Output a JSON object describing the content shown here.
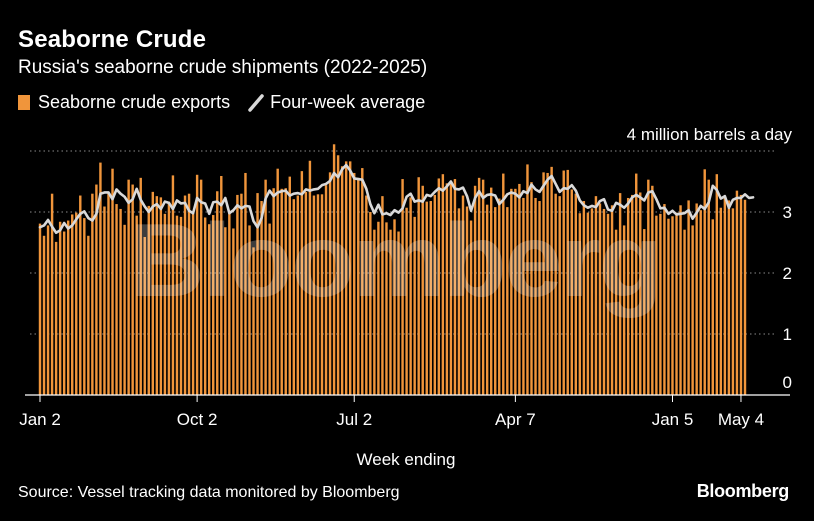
{
  "header": {
    "title": "Seaborne Crude",
    "subtitle": "Russia's seaborne crude shipments (2022-2025)"
  },
  "legend": {
    "bars_label": "Seaborne crude exports",
    "line_label": "Four-week average"
  },
  "footer": {
    "source": "Source: Vessel tracking data monitored by Bloomberg",
    "brand": "Bloomberg"
  },
  "watermark": "Bloomberg",
  "colors": {
    "background": "#000000",
    "bar": "#f0953b",
    "line": "#d9d9d9",
    "grid": "#8a8a8a",
    "text": "#ffffff"
  },
  "chart_data": {
    "type": "bar",
    "unit_label": "4 million barrels a day",
    "xlabel": "Week ending",
    "ylim": [
      0,
      4
    ],
    "yticks": [
      0,
      1,
      2,
      3,
      4
    ],
    "ytick_labels": [
      "0",
      "1",
      "2",
      "3",
      ""
    ],
    "xtick_labels": [
      "Jan 2",
      "Oct 2",
      "Jul 2",
      "Apr 7",
      "Jan 5",
      "May 4"
    ],
    "xtick_indices": [
      0,
      39,
      78,
      118,
      157,
      174
    ],
    "grid": "horizontal dotted",
    "series": [
      {
        "name": "Seaborne crude exports",
        "style": "bar",
        "values": [
          2.81,
          2.61,
          2.78,
          3.3,
          2.51,
          2.84,
          2.68,
          2.86,
          2.96,
          2.99,
          3.27,
          2.9,
          2.61,
          3.3,
          3.45,
          3.81,
          3.09,
          3.31,
          3.71,
          3.13,
          3.05,
          2.79,
          3.53,
          3.45,
          2.94,
          3.56,
          2.59,
          3.1,
          3.33,
          3.26,
          3.24,
          2.97,
          3.17,
          3.6,
          2.94,
          2.92,
          3.27,
          3.3,
          2.98,
          3.61,
          3.53,
          2.91,
          2.8,
          2.95,
          3.34,
          3.59,
          2.75,
          3.02,
          2.73,
          3.28,
          3.3,
          3.64,
          2.78,
          2.42,
          3.31,
          3.18,
          3.53,
          2.81,
          3.39,
          3.71,
          3.38,
          3.39,
          3.58,
          3.21,
          3.27,
          3.67,
          3.33,
          3.84,
          3.27,
          3.29,
          3.29,
          3.44,
          3.65,
          4.11,
          3.93,
          3.75,
          3.83,
          3.83,
          3.64,
          3.56,
          3.72,
          3.27,
          3.0,
          2.71,
          2.84,
          3.26,
          2.83,
          2.71,
          2.88,
          2.68,
          3.54,
          3.07,
          3.24,
          2.92,
          3.57,
          3.43,
          3.17,
          3.18,
          3.28,
          3.55,
          3.62,
          3.47,
          3.49,
          3.54,
          3.06,
          3.27,
          3.09,
          2.86,
          3.43,
          3.56,
          3.53,
          3.12,
          3.4,
          3.08,
          3.22,
          3.63,
          3.08,
          3.38,
          3.38,
          3.46,
          3.23,
          3.78,
          3.49,
          3.23,
          3.18,
          3.65,
          3.64,
          3.74,
          3.3,
          3.26,
          3.68,
          3.69,
          3.37,
          3.3,
          2.98,
          3.18,
          2.99,
          3.06,
          3.26,
          3.14,
          3.05,
          2.97,
          3.11,
          2.71,
          3.31,
          2.78,
          3.23,
          3.28,
          3.63,
          3.32,
          2.72,
          3.53,
          3.43,
          2.94,
          2.97,
          3.13,
          2.89,
          2.93,
          2.99,
          3.11,
          2.71,
          3.19,
          2.78,
          3.14,
          3.03,
          3.7,
          3.53,
          2.88,
          3.62,
          3.07,
          3.23,
          3.19,
          3.06,
          3.35,
          3.28,
          3.2
        ]
      },
      {
        "name": "Four-week average",
        "style": "line",
        "values": [
          2.75,
          2.78,
          2.87,
          2.76,
          2.66,
          2.7,
          2.82,
          2.73,
          2.78,
          2.88,
          2.97,
          3.01,
          2.9,
          2.86,
          2.97,
          3.3,
          3.32,
          3.32,
          3.21,
          3.37,
          3.3,
          3.25,
          3.15,
          3.21,
          3.38,
          3.2,
          3.09,
          3.0,
          3.09,
          3.13,
          3.05,
          3.17,
          3.15,
          3.05,
          3.19,
          3.14,
          3.15,
          3.02,
          2.98,
          3.23,
          3.16,
          3.14,
          2.97,
          3.16,
          3.17,
          3.11,
          3.23,
          2.98,
          3.03,
          3.11,
          3.06,
          3.1,
          3.09,
          2.85,
          2.75,
          2.9,
          3.22,
          3.35,
          3.26,
          3.32,
          3.34,
          3.35,
          3.27,
          3.3,
          3.31,
          3.29,
          3.37,
          3.35,
          3.37,
          3.38,
          3.44,
          3.46,
          3.51,
          3.64,
          3.57,
          3.7,
          3.77,
          3.68,
          3.55,
          3.54,
          3.53,
          3.38,
          3.13,
          2.98,
          3.12,
          2.96,
          2.98,
          2.95,
          3.03,
          2.99,
          3.06,
          3.25,
          3.3,
          3.17,
          3.19,
          3.17,
          3.28,
          3.26,
          3.33,
          3.39,
          3.35,
          3.42,
          3.5,
          3.38,
          3.37,
          3.4,
          3.26,
          3.02,
          3.23,
          3.34,
          3.23,
          3.28,
          3.29,
          3.27,
          3.13,
          3.2,
          3.29,
          3.32,
          3.3,
          3.24,
          3.34,
          3.31,
          3.45,
          3.37,
          3.33,
          3.43,
          3.53,
          3.59,
          3.46,
          3.33,
          3.39,
          3.38,
          3.44,
          3.35,
          3.19,
          3.11,
          3.07,
          3.1,
          3.08,
          3.18,
          3.21,
          3.04,
          3.02,
          3.15,
          3.12,
          3.07,
          3.14,
          3.24,
          3.28,
          3.24,
          3.19,
          3.32,
          3.34,
          3.21,
          3.06,
          3.07,
          2.97,
          3.02,
          2.96,
          2.97,
          2.98,
          3.03,
          2.89,
          2.99,
          3.1,
          3.05,
          3.16,
          3.43,
          3.36,
          3.22,
          3.26,
          3.07,
          3.2,
          3.23,
          3.23,
          3.29,
          3.23,
          3.24
        ]
      }
    ]
  }
}
